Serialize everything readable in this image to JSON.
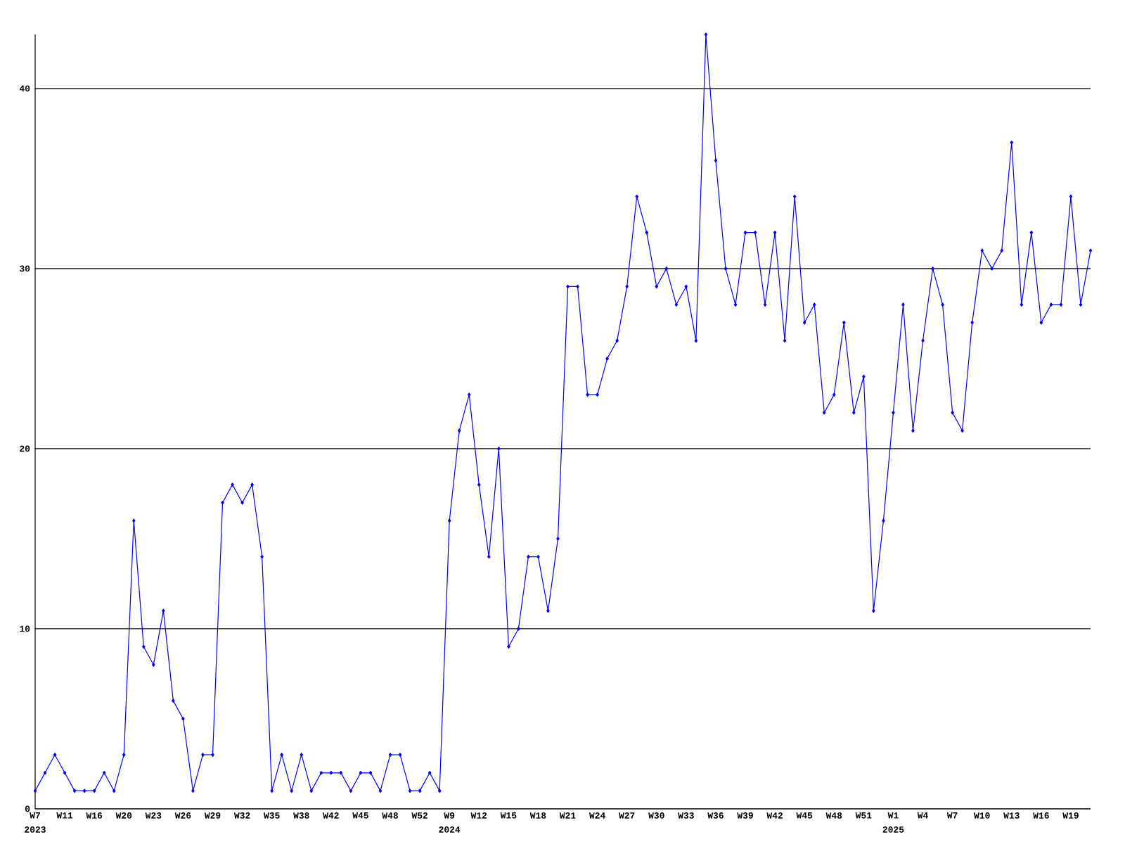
{
  "chart_data": {
    "type": "line",
    "color": "#0000ff",
    "marker": "diamond",
    "grid": "y",
    "ylim": [
      0,
      43
    ],
    "yticks": [
      0,
      10,
      20,
      30,
      40
    ],
    "categories": [
      "W7",
      null,
      null,
      "W11",
      null,
      null,
      "W16",
      null,
      null,
      "W20",
      null,
      null,
      "W23",
      null,
      null,
      "W26",
      null,
      null,
      "W29",
      null,
      null,
      "W32",
      null,
      null,
      "W35",
      null,
      null,
      "W38",
      null,
      null,
      "W42",
      null,
      null,
      "W45",
      null,
      null,
      "W48",
      null,
      null,
      "W52",
      null,
      null,
      "W9",
      null,
      null,
      "W12",
      null,
      null,
      "W15",
      null,
      null,
      "W18",
      null,
      null,
      "W21",
      null,
      null,
      "W24",
      null,
      null,
      "W27",
      null,
      null,
      "W30",
      null,
      null,
      "W33",
      null,
      null,
      "W36",
      null,
      null,
      "W39",
      null,
      null,
      "W42",
      null,
      null,
      "W45",
      null,
      null,
      "W48",
      null,
      null,
      "W51",
      null,
      null,
      "W1",
      null,
      null,
      "W4",
      null,
      null,
      "W7",
      null,
      null,
      "W10",
      null,
      null,
      "W13",
      null,
      null,
      "W16",
      null,
      null,
      "W19",
      null,
      null
    ],
    "values": [
      1,
      2,
      3,
      2,
      1,
      1,
      1,
      2,
      1,
      3,
      16,
      9,
      8,
      11,
      6,
      5,
      1,
      3,
      3,
      17,
      18,
      17,
      18,
      14,
      1,
      3,
      1,
      3,
      1,
      2,
      2,
      2,
      1,
      2,
      2,
      1,
      3,
      3,
      1,
      1,
      2,
      1,
      16,
      21,
      23,
      18,
      14,
      20,
      9,
      10,
      14,
      14,
      11,
      15,
      29,
      29,
      23,
      23,
      25,
      26,
      29,
      34,
      32,
      29,
      30,
      28,
      29,
      26,
      43,
      36,
      30,
      28,
      32,
      32,
      28,
      32,
      26,
      34,
      27,
      28,
      22,
      23,
      27,
      22,
      24,
      11,
      16,
      22,
      28,
      21,
      26,
      30,
      28,
      22,
      21,
      27,
      31,
      30,
      31,
      37,
      28,
      32,
      27,
      28,
      28,
      34,
      28,
      31
    ],
    "annotations": [
      "2023",
      "2024",
      "2025"
    ]
  }
}
